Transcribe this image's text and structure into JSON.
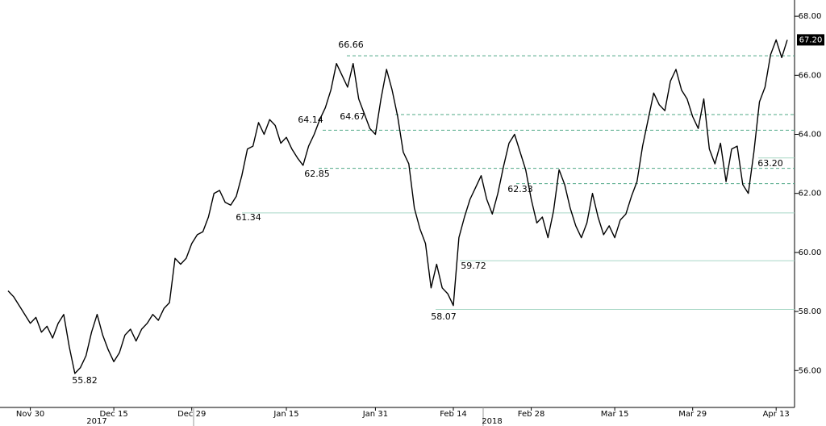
{
  "chart_data": {
    "type": "line",
    "categories": [
      null,
      null,
      null,
      null,
      "Nov 30",
      null,
      null,
      null,
      null,
      null,
      null,
      null,
      null,
      null,
      null,
      null,
      null,
      null,
      null,
      "Dec 15",
      null,
      null,
      null,
      null,
      null,
      null,
      null,
      null,
      null,
      null,
      null,
      null,
      null,
      "Dec 29",
      null,
      null,
      null,
      null,
      null,
      null,
      null,
      null,
      null,
      null,
      null,
      null,
      null,
      null,
      null,
      null,
      "Jan 15",
      null,
      null,
      null,
      null,
      null,
      null,
      null,
      null,
      null,
      null,
      null,
      null,
      null,
      null,
      null,
      "Jan 31",
      null,
      null,
      null,
      null,
      null,
      null,
      null,
      null,
      null,
      null,
      null,
      null,
      null,
      "Feb 14",
      null,
      null,
      null,
      null,
      null,
      null,
      null,
      null,
      null,
      null,
      null,
      null,
      null,
      "Feb 28",
      null,
      null,
      null,
      null,
      null,
      null,
      null,
      null,
      null,
      null,
      null,
      null,
      null,
      null,
      "Mar 15",
      null,
      null,
      null,
      null,
      null,
      null,
      null,
      null,
      null,
      null,
      null,
      null,
      null,
      "Mar 29",
      null,
      null,
      null,
      null,
      null,
      null,
      null,
      null,
      null,
      null,
      null,
      null,
      null,
      null,
      "Apr 13",
      null,
      null
    ],
    "years": [
      "2017",
      "2018"
    ],
    "series": [
      {
        "color": "#000000",
        "values": [
          58.7,
          58.5,
          58.2,
          57.9,
          57.6,
          57.8,
          57.3,
          57.5,
          57.1,
          57.6,
          57.9,
          56.8,
          55.9,
          56.1,
          56.5,
          57.3,
          57.9,
          57.2,
          56.7,
          56.3,
          56.6,
          57.2,
          57.4,
          57.0,
          57.4,
          57.6,
          57.9,
          57.7,
          58.1,
          58.3,
          59.8,
          59.6,
          59.8,
          60.3,
          60.6,
          60.7,
          61.2,
          62.0,
          62.1,
          61.7,
          61.6,
          61.9,
          62.6,
          63.5,
          63.6,
          64.4,
          64.0,
          64.5,
          64.3,
          63.7,
          63.9,
          63.5,
          63.2,
          62.95,
          63.6,
          64.0,
          64.5,
          64.9,
          65.5,
          66.4,
          66.0,
          65.6,
          66.4,
          65.2,
          64.7,
          64.2,
          64.0,
          65.2,
          66.2,
          65.5,
          64.6,
          63.4,
          63.0,
          61.5,
          60.8,
          60.3,
          58.8,
          59.6,
          58.8,
          58.6,
          58.2,
          60.5,
          61.2,
          61.8,
          62.2,
          62.6,
          61.8,
          61.3,
          62.0,
          62.9,
          63.7,
          64.0,
          63.4,
          62.8,
          61.8,
          61.0,
          61.2,
          60.5,
          61.4,
          62.8,
          62.3,
          61.5,
          60.9,
          60.5,
          61.0,
          62.0,
          61.2,
          60.6,
          60.9,
          60.5,
          61.1,
          61.3,
          61.9,
          62.4,
          63.6,
          64.5,
          65.4,
          65.0,
          64.8,
          65.8,
          66.2,
          65.5,
          65.2,
          64.6,
          64.2,
          65.2,
          63.5,
          63.0,
          63.7,
          62.4,
          63.5,
          63.6,
          62.3,
          62.0,
          63.4,
          65.1,
          65.6,
          66.7,
          67.2,
          66.6,
          67.2
        ]
      }
    ],
    "ylim": [
      54.75,
      68.55
    ],
    "yticks": [
      {
        "value": 56,
        "label": "56.00"
      },
      {
        "value": 58,
        "label": "58.00"
      },
      {
        "value": 60,
        "label": "60.00"
      },
      {
        "value": 62,
        "label": "62.00"
      },
      {
        "value": 64,
        "label": "64.00"
      },
      {
        "value": 66,
        "label": "66.00"
      },
      {
        "value": 68,
        "label": "68.00"
      }
    ],
    "last_value": {
      "value": 67.2,
      "label": "67.20"
    },
    "levels": [
      {
        "value": 66.66,
        "style": "dashed"
      },
      {
        "value": 64.67,
        "style": "dashed"
      },
      {
        "value": 64.14,
        "style": "dashed"
      },
      {
        "value": {
          "value": 63.2,
          "label": "63.20"
        },
        "style": "solid"
      },
      {
        "value": 62.85,
        "style": "dashed"
      },
      {
        "value": 62.33,
        "style": "dashed"
      },
      {
        "value": 61.34,
        "style": "solid"
      },
      {
        "value": 59.72,
        "style": "solid"
      },
      {
        "value": 58.07,
        "style": "solid"
      },
      {
        "value": 55.82,
        "style": "none"
      }
    ]
  }
}
